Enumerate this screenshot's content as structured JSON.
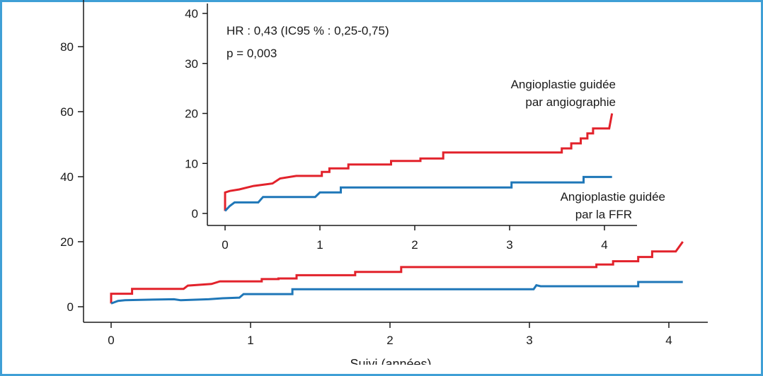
{
  "chart_data": [
    {
      "id": "main",
      "type": "line",
      "xlabel": "Suivi (années)",
      "ylabel": "",
      "xlim": [
        0,
        4.25
      ],
      "ylim": [
        -5,
        95
      ],
      "xticks": [
        0,
        1,
        2,
        3,
        4
      ],
      "yticks": [
        0,
        20,
        40,
        60,
        80
      ],
      "series": [
        {
          "color": "#e2222b",
          "points": [
            [
              0,
              1
            ],
            [
              0,
              4
            ],
            [
              0.15,
              4
            ],
            [
              0.15,
              5.5
            ],
            [
              0.52,
              5.5
            ],
            [
              0.55,
              6.5
            ],
            [
              0.72,
              7
            ],
            [
              0.78,
              7.8
            ],
            [
              1.08,
              7.8
            ],
            [
              1.08,
              8.5
            ],
            [
              1.2,
              8.5
            ],
            [
              1.2,
              8.7
            ],
            [
              1.33,
              8.7
            ],
            [
              1.33,
              9.7
            ],
            [
              1.75,
              9.7
            ],
            [
              1.75,
              10.7
            ],
            [
              2.08,
              10.7
            ],
            [
              2.08,
              12.2
            ],
            [
              3.48,
              12.2
            ],
            [
              3.48,
              13
            ],
            [
              3.6,
              13
            ],
            [
              3.6,
              14
            ],
            [
              3.78,
              14
            ],
            [
              3.78,
              15.3
            ],
            [
              3.88,
              15.3
            ],
            [
              3.88,
              17
            ],
            [
              4.05,
              17
            ],
            [
              4.1,
              20
            ]
          ]
        },
        {
          "color": "#1f77b8",
          "points": [
            [
              0,
              1
            ],
            [
              0.05,
              1.8
            ],
            [
              0.1,
              2
            ],
            [
              0.3,
              2.2
            ],
            [
              0.45,
              2.3
            ],
            [
              0.5,
              2
            ],
            [
              0.7,
              2.3
            ],
            [
              0.8,
              2.6
            ],
            [
              0.92,
              2.8
            ],
            [
              0.95,
              3.9
            ],
            [
              1.3,
              3.9
            ],
            [
              1.3,
              5.4
            ],
            [
              3.03,
              5.4
            ],
            [
              3.05,
              6.6
            ],
            [
              3.08,
              6.3
            ],
            [
              3.78,
              6.3
            ],
            [
              3.78,
              7.6
            ],
            [
              4.1,
              7.6
            ]
          ]
        }
      ]
    },
    {
      "id": "inset",
      "type": "line",
      "xlim": [
        0,
        4.3
      ],
      "ylim": [
        -2,
        42
      ],
      "xticks": [
        0,
        1,
        2,
        3,
        4
      ],
      "yticks": [
        0,
        10,
        20,
        30,
        40
      ],
      "annotations": {
        "hr": "HR : 0,43 (IC95 % : 0,25-0,75)",
        "p": "p = 0,003",
        "red_label_1": "Angioplastie guidée",
        "red_label_2": "par angiographie",
        "blue_label_1": "Angioplastie guidée",
        "blue_label_2": "par la FFR"
      },
      "series": [
        {
          "name": "Angioplastie guidée par angiographie",
          "color": "#e2222b",
          "points": [
            [
              0,
              0.5
            ],
            [
              0,
              4.2
            ],
            [
              0.05,
              4.5
            ],
            [
              0.15,
              4.8
            ],
            [
              0.3,
              5.5
            ],
            [
              0.5,
              6
            ],
            [
              0.58,
              7
            ],
            [
              0.75,
              7.5
            ],
            [
              1.02,
              7.5
            ],
            [
              1.02,
              8.3
            ],
            [
              1.1,
              8.3
            ],
            [
              1.1,
              9
            ],
            [
              1.3,
              9
            ],
            [
              1.3,
              9.8
            ],
            [
              1.75,
              9.8
            ],
            [
              1.75,
              10.5
            ],
            [
              2.06,
              10.5
            ],
            [
              2.06,
              11
            ],
            [
              2.3,
              11
            ],
            [
              2.3,
              12.2
            ],
            [
              3.55,
              12.2
            ],
            [
              3.55,
              13
            ],
            [
              3.65,
              13
            ],
            [
              3.65,
              14
            ],
            [
              3.75,
              14
            ],
            [
              3.75,
              15
            ],
            [
              3.82,
              15
            ],
            [
              3.82,
              16
            ],
            [
              3.88,
              16
            ],
            [
              3.88,
              17
            ],
            [
              4.05,
              17
            ],
            [
              4.08,
              20
            ]
          ]
        },
        {
          "name": "Angioplastie guidée par la FFR",
          "color": "#1f77b8",
          "points": [
            [
              0,
              0.5
            ],
            [
              0.05,
              1.5
            ],
            [
              0.1,
              2.2
            ],
            [
              0.35,
              2.2
            ],
            [
              0.4,
              3.3
            ],
            [
              0.95,
              3.3
            ],
            [
              1,
              4.2
            ],
            [
              1.22,
              4.2
            ],
            [
              1.22,
              5.2
            ],
            [
              3.02,
              5.2
            ],
            [
              3.02,
              6.2
            ],
            [
              3.78,
              6.2
            ],
            [
              3.78,
              7.3
            ],
            [
              4.08,
              7.3
            ]
          ]
        }
      ]
    }
  ]
}
